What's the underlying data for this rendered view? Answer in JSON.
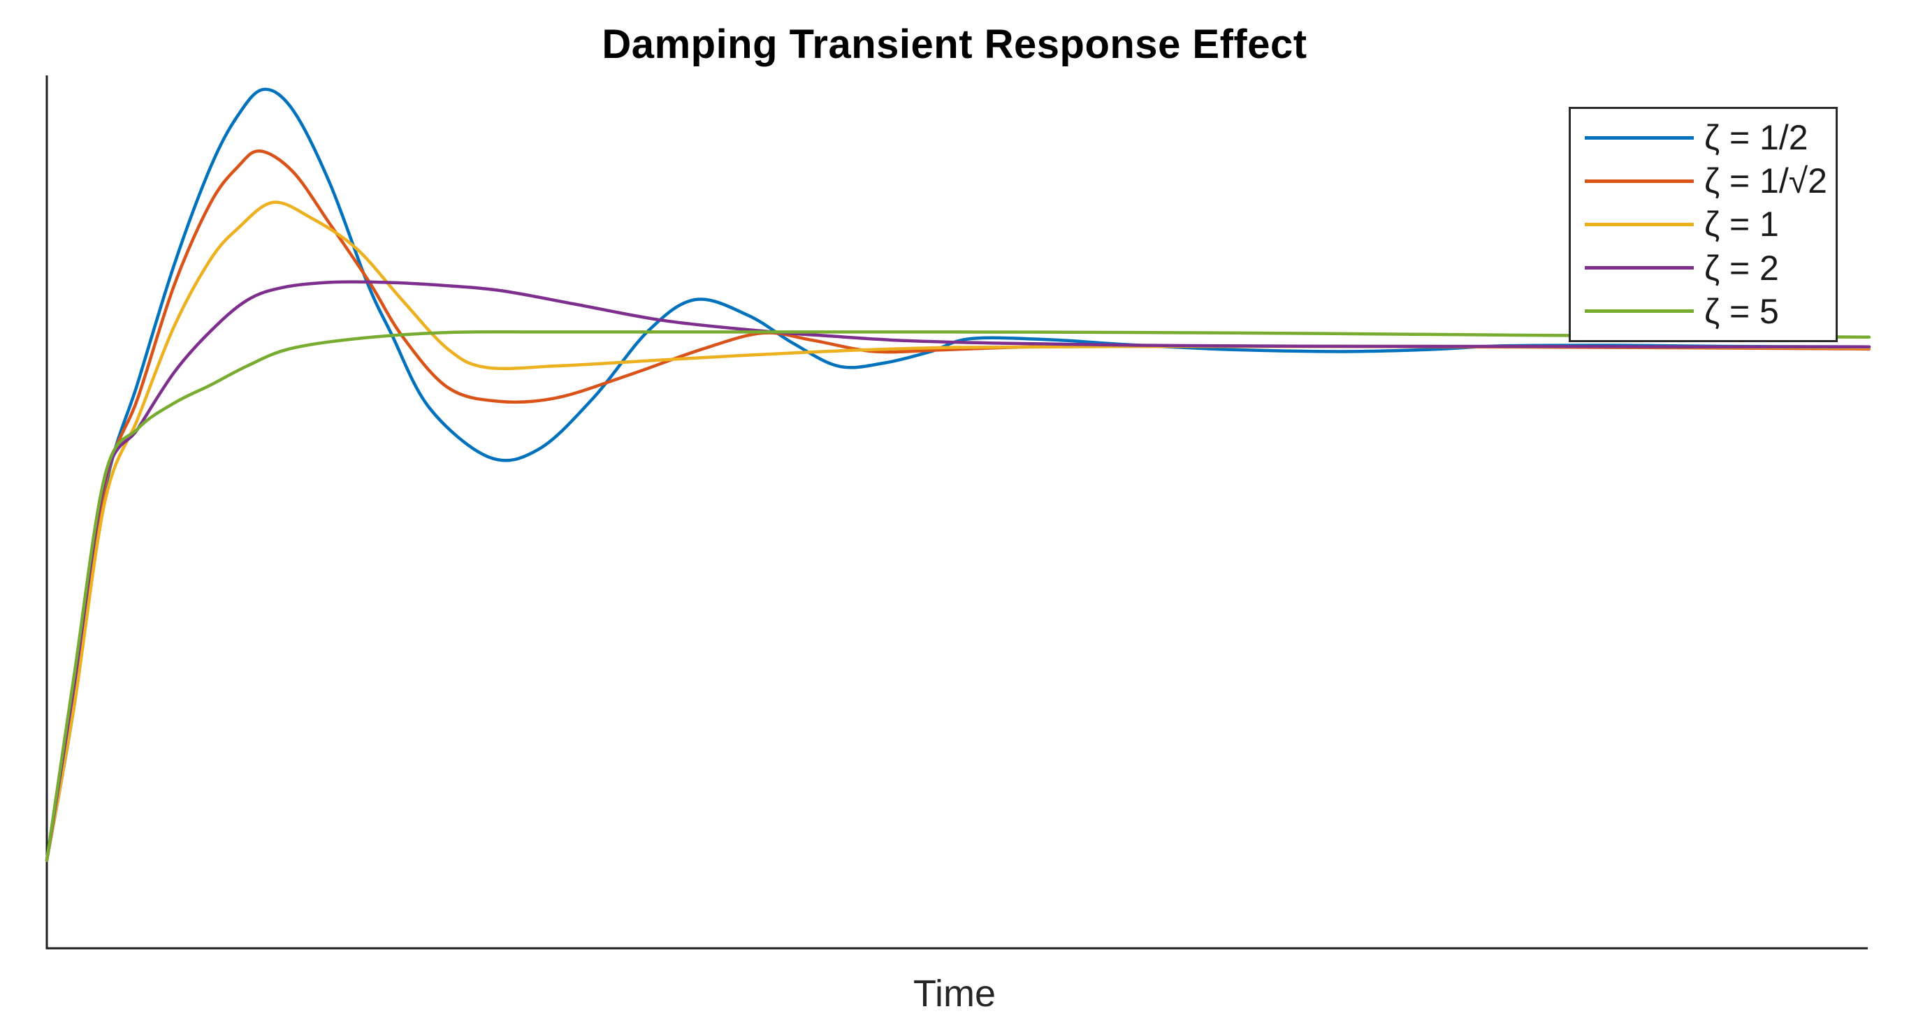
{
  "figure": {
    "background": "#ffffff",
    "axis_color": "#1f1f1f",
    "text_color": "#262626"
  },
  "chart_data": {
    "type": "line",
    "title": "Damping Transient Response Effect",
    "xlabel": "Time",
    "ylabel": "",
    "grid": false,
    "axis_ticks": "none",
    "x_range": [
      0,
      10
    ],
    "y_range": [
      -0.17,
      1.53
    ],
    "steady_state_value": 1,
    "legend_position": "northeast",
    "series": [
      {
        "name": "ζ = 1/2",
        "zeta": 0.5,
        "color": "#0072BD",
        "t": [
          0,
          0.15,
          0.32,
          0.5,
          0.7,
          0.9,
          1.05,
          1.19,
          1.35,
          1.55,
          1.756,
          1.89,
          2.1,
          2.43,
          2.7,
          3.0,
          3.3,
          3.56,
          3.85,
          4.1,
          4.35,
          4.6,
          4.85,
          5.07,
          5.5,
          5.9,
          6.4,
          6.8,
          7.16,
          7.6,
          8.0,
          8.6,
          9.2,
          10
        ],
        "y": [
          0,
          0.3,
          0.72,
          0.93,
          1.16,
          1.35,
          1.45,
          1.5,
          1.46,
          1.32,
          1.126,
          1.025,
          0.88,
          0.784,
          0.8,
          0.9,
          1.03,
          1.091,
          1.06,
          1.005,
          0.961,
          0.968,
          0.99,
          1.015,
          1.013,
          1.004,
          0.995,
          0.991,
          0.99,
          0.994,
          1.001,
          1.002,
          1.0,
          0.999
        ]
      },
      {
        "name": "ζ = 1/√2",
        "zeta": 0.7071,
        "color": "#D95319",
        "t": [
          0,
          0.15,
          0.32,
          0.5,
          0.7,
          0.9,
          1.05,
          1.17,
          1.35,
          1.55,
          1.77,
          1.95,
          2.2,
          2.48,
          2.8,
          3.2,
          3.6,
          3.93,
          4.2,
          4.54,
          4.9,
          5.4,
          6.0,
          7.0,
          8.5,
          10
        ],
        "y": [
          0,
          0.32,
          0.73,
          0.9,
          1.12,
          1.28,
          1.35,
          1.38,
          1.34,
          1.24,
          1.125,
          1.02,
          0.92,
          0.893,
          0.9,
          0.945,
          0.995,
          1.026,
          1.012,
          0.99,
          0.993,
          0.999,
          1.0,
          1.0,
          0.998,
          0.995
        ]
      },
      {
        "name": "ζ = 1",
        "zeta": 1,
        "color": "#EDB120",
        "t": [
          0,
          0.15,
          0.32,
          0.5,
          0.7,
          0.9,
          1.05,
          1.24,
          1.45,
          1.7,
          1.95,
          2.2,
          2.41,
          2.8,
          3.3,
          3.8,
          4.4,
          5.0,
          6.0,
          7.5,
          10
        ],
        "y": [
          0,
          0.3,
          0.7,
          0.86,
          1.04,
          1.17,
          1.23,
          1.28,
          1.25,
          1.19,
          1.09,
          0.995,
          0.959,
          0.962,
          0.972,
          0.982,
          0.992,
          0.998,
          1.0,
          1.0,
          0.997
        ]
      },
      {
        "name": "ζ = 2",
        "zeta": 2,
        "color": "#7E2F8E",
        "t": [
          0,
          0.15,
          0.32,
          0.5,
          0.7,
          0.9,
          1.1,
          1.3,
          1.58,
          1.9,
          2.2,
          2.5,
          2.9,
          3.39,
          3.92,
          4.3,
          4.66,
          5.1,
          5.43,
          6.0,
          6.44,
          7.2,
          8.0,
          9.0,
          10
        ],
        "y": [
          0,
          0.34,
          0.74,
          0.84,
          0.95,
          1.03,
          1.09,
          1.115,
          1.125,
          1.124,
          1.118,
          1.108,
          1.082,
          1.05,
          1.03,
          1.02,
          1.012,
          1.007,
          1.005,
          1.002,
          1.001,
          1.0,
          1.0,
          0.999,
          0.999
        ]
      },
      {
        "name": "ζ = 5",
        "zeta": 5,
        "color": "#77AC30",
        "t": [
          0,
          0.15,
          0.32,
          0.5,
          0.7,
          0.9,
          1.1,
          1.33,
          1.7,
          2.2,
          2.7,
          3.2,
          4.0,
          5.0,
          6.0,
          7.0,
          8.0,
          9.0,
          10
        ],
        "y": [
          0,
          0.36,
          0.75,
          0.84,
          0.89,
          0.925,
          0.962,
          0.995,
          1.015,
          1.027,
          1.028,
          1.028,
          1.028,
          1.028,
          1.027,
          1.025,
          1.022,
          1.02,
          1.018
        ]
      }
    ]
  }
}
